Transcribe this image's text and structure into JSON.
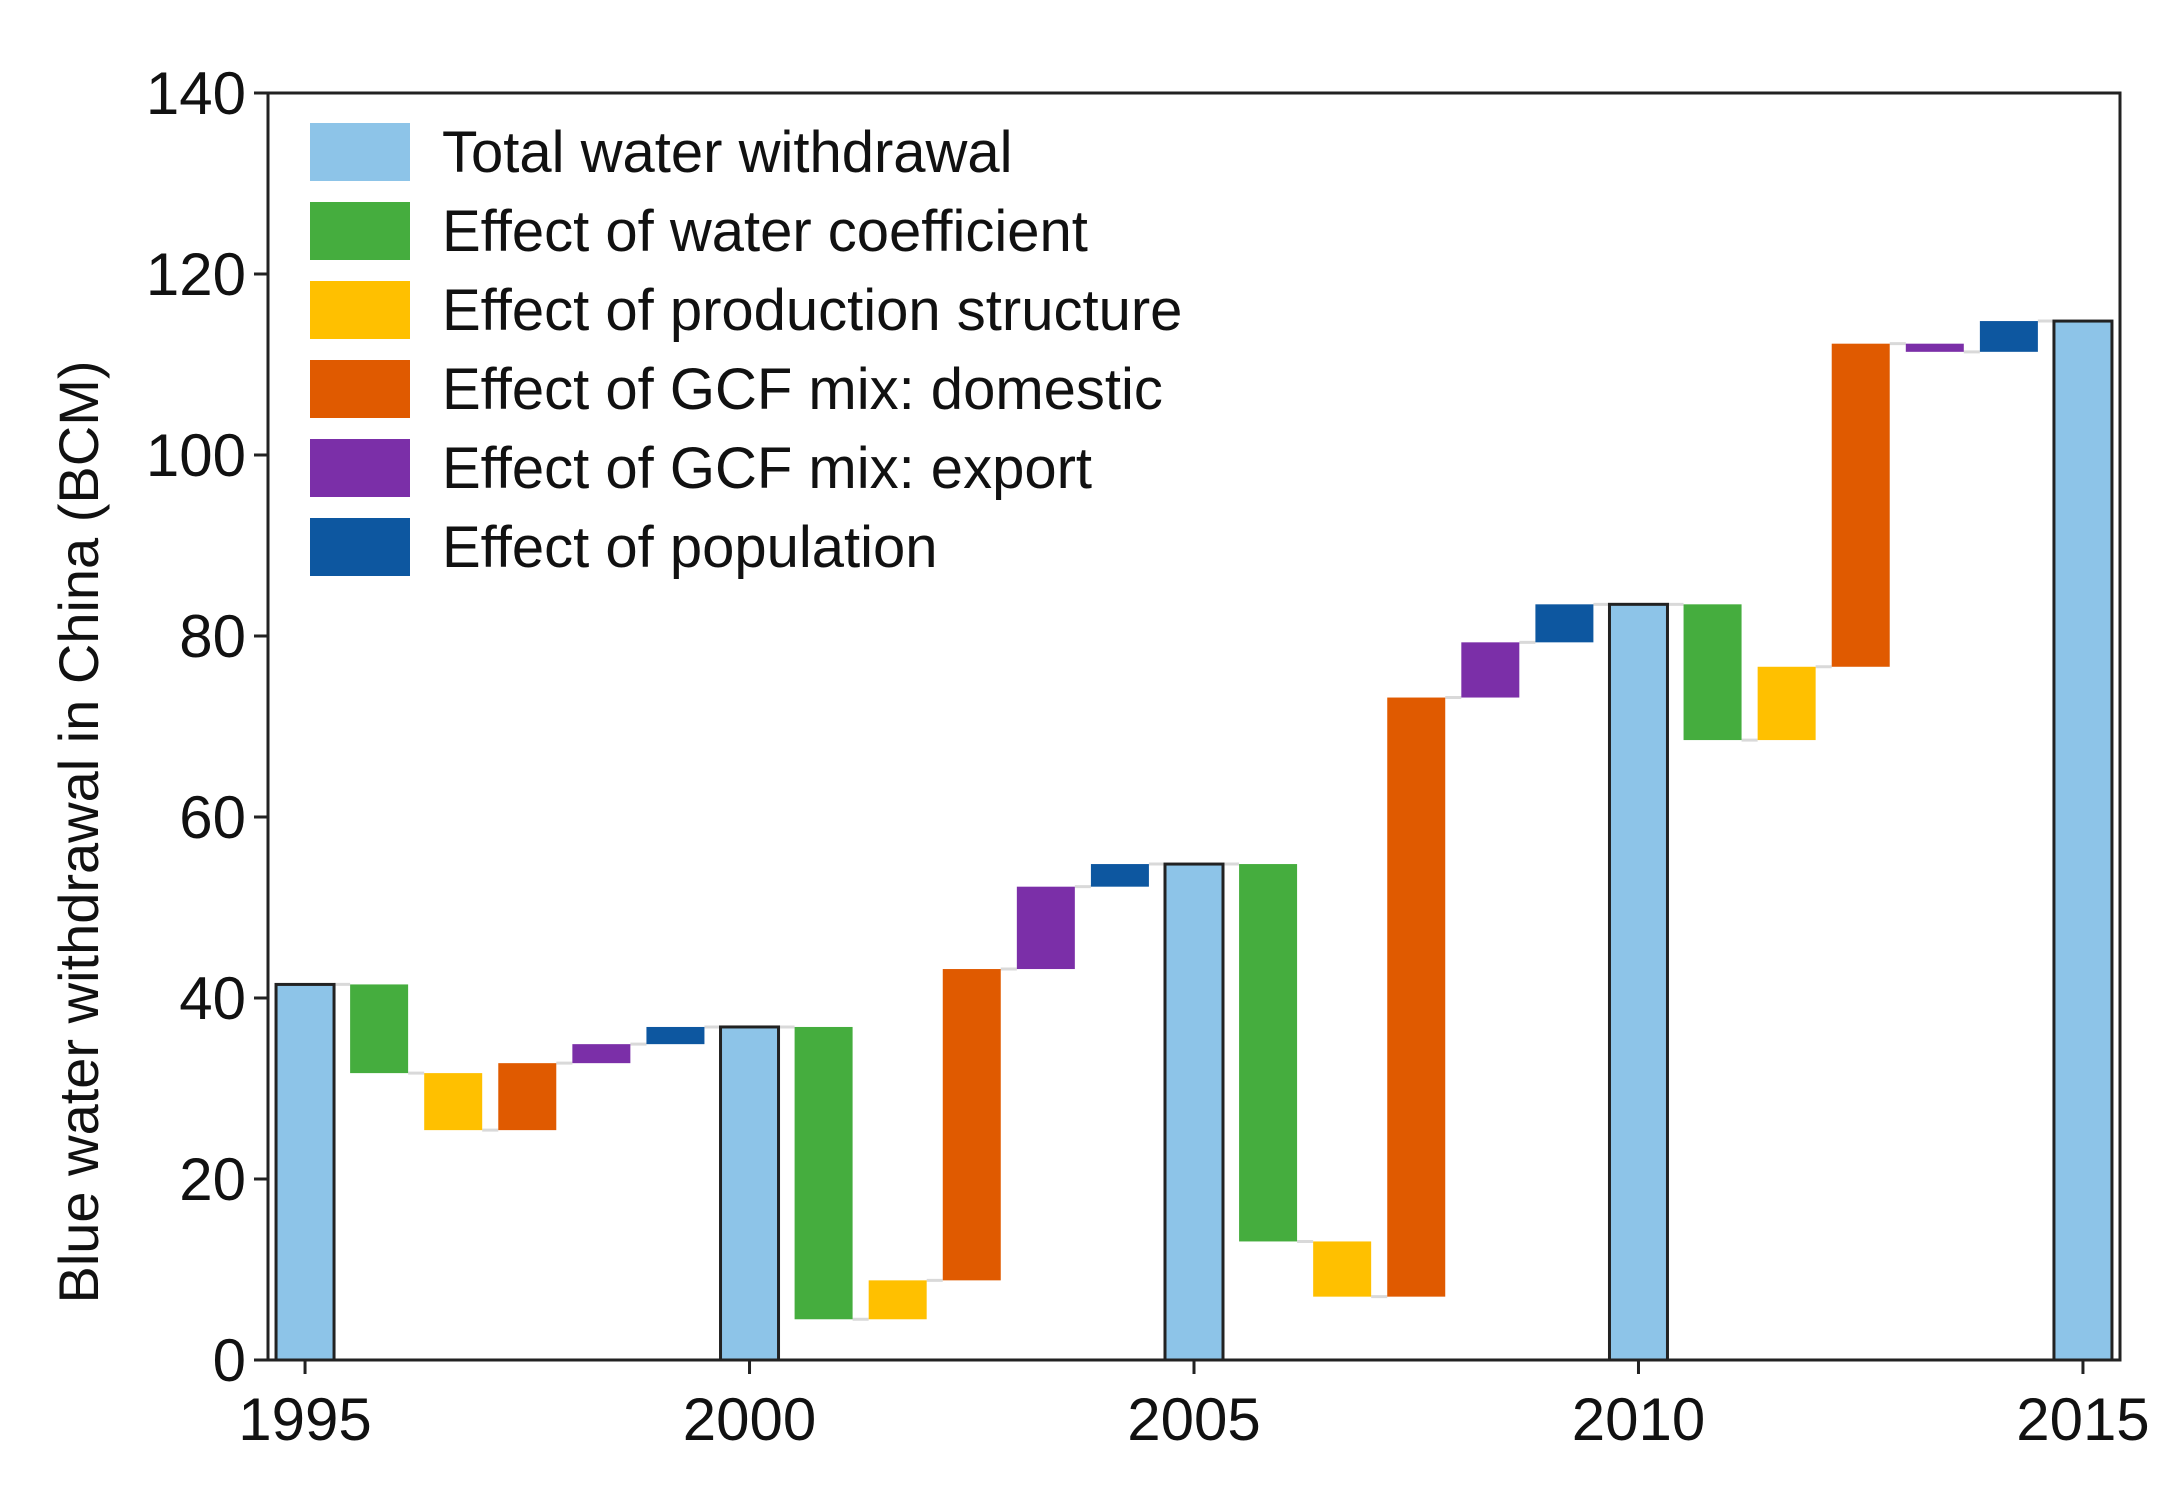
{
  "chart_data": {
    "type": "bar",
    "subtype": "waterfall",
    "title": "",
    "xlabel": "",
    "ylabel": "Blue water withdrawal in China (BCM)",
    "ylim": [
      0,
      140
    ],
    "yticks": [
      0,
      20,
      40,
      60,
      80,
      100,
      120,
      140
    ],
    "xticks": [
      "1995",
      "2000",
      "2005",
      "2010",
      "2015"
    ],
    "grid": false,
    "legend_position": "top-left",
    "legend": [
      {
        "key": "total",
        "label": "Total water withdrawal",
        "color": "#8dc4e8"
      },
      {
        "key": "coef",
        "label": "Effect of water coefficient",
        "color": "#45ad3e"
      },
      {
        "key": "prod",
        "label": "Effect of production structure",
        "color": "#ffc000"
      },
      {
        "key": "dom",
        "label": "Effect of GCF mix: domestic",
        "color": "#e05a00"
      },
      {
        "key": "exp",
        "label": "Effect of GCF mix: export",
        "color": "#7b2fa8"
      },
      {
        "key": "pop",
        "label": "Effect of population",
        "color": "#0d57a0"
      }
    ],
    "bars": [
      {
        "slot": 0,
        "type": "total",
        "label": "1995",
        "start": 0,
        "end": 41.5
      },
      {
        "slot": 1,
        "type": "coef",
        "start": 41.5,
        "end": 31.7
      },
      {
        "slot": 2,
        "type": "prod",
        "start": 31.7,
        "end": 25.4
      },
      {
        "slot": 3,
        "type": "dom",
        "start": 25.4,
        "end": 32.8
      },
      {
        "slot": 4,
        "type": "exp",
        "start": 32.8,
        "end": 34.9
      },
      {
        "slot": 5,
        "type": "pop",
        "start": 34.9,
        "end": 36.8
      },
      {
        "slot": 6,
        "type": "total",
        "label": "2000",
        "start": 0,
        "end": 36.8
      },
      {
        "slot": 7,
        "type": "coef",
        "start": 36.8,
        "end": 4.5
      },
      {
        "slot": 8,
        "type": "prod",
        "start": 4.5,
        "end": 8.8
      },
      {
        "slot": 9,
        "type": "dom",
        "start": 8.8,
        "end": 43.2
      },
      {
        "slot": 10,
        "type": "exp",
        "start": 43.2,
        "end": 52.3
      },
      {
        "slot": 11,
        "type": "pop",
        "start": 52.3,
        "end": 54.8
      },
      {
        "slot": 12,
        "type": "total",
        "label": "2005",
        "start": 0,
        "end": 54.8
      },
      {
        "slot": 13,
        "type": "coef",
        "start": 54.8,
        "end": 13.1
      },
      {
        "slot": 14,
        "type": "prod",
        "start": 13.1,
        "end": 7.0
      },
      {
        "slot": 15,
        "type": "dom",
        "start": 7.0,
        "end": 73.2
      },
      {
        "slot": 16,
        "type": "exp",
        "start": 73.2,
        "end": 79.3
      },
      {
        "slot": 17,
        "type": "pop",
        "start": 79.3,
        "end": 83.5
      },
      {
        "slot": 18,
        "type": "total",
        "label": "2010",
        "start": 0,
        "end": 83.5
      },
      {
        "slot": 19,
        "type": "coef",
        "start": 83.5,
        "end": 68.5
      },
      {
        "slot": 20,
        "type": "prod",
        "start": 68.5,
        "end": 76.6
      },
      {
        "slot": 21,
        "type": "dom",
        "start": 76.6,
        "end": 112.3
      },
      {
        "slot": 22,
        "type": "exp",
        "start": 112.3,
        "end": 111.4
      },
      {
        "slot": 23,
        "type": "pop",
        "start": 111.4,
        "end": 114.8
      },
      {
        "slot": 24,
        "type": "total",
        "label": "2015",
        "start": 0,
        "end": 114.8
      }
    ]
  }
}
